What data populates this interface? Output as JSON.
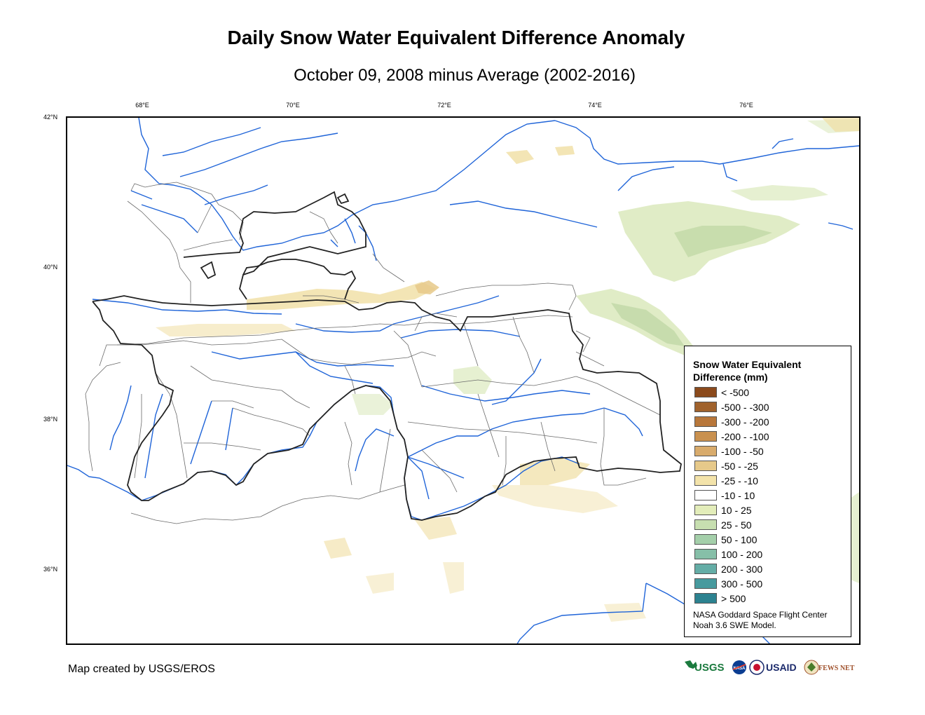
{
  "title": "Daily Snow Water Equivalent Difference Anomaly",
  "subtitle": "October 09, 2008 minus Average (2002-2016)",
  "longitude_labels": [
    "68°E",
    "70°E",
    "72°E",
    "74°E",
    "76°E"
  ],
  "latitude_labels": [
    "42°N",
    "40°N",
    "38°N",
    "36°N"
  ],
  "legend": {
    "title_line1": "Snow Water Equivalent",
    "title_line2": "Difference (mm)",
    "items": [
      {
        "label": "< -500",
        "color": "#8b4a1c"
      },
      {
        "label": "-500 - -300",
        "color": "#a0622c"
      },
      {
        "label": "-300 - -200",
        "color": "#b8773a"
      },
      {
        "label": "-200 - -100",
        "color": "#c9914f"
      },
      {
        "label": "-100 - -50",
        "color": "#d8ab6c"
      },
      {
        "label": "-50 - -25",
        "color": "#e6c98a"
      },
      {
        "label": "-25 - -10",
        "color": "#f3e3aa"
      },
      {
        "label": "-10 - 10",
        "color": "#ffffff"
      },
      {
        "label": "10 - 25",
        "color": "#e3edba"
      },
      {
        "label": "25 - 50",
        "color": "#c7dfb0"
      },
      {
        "label": "50 - 100",
        "color": "#a4cfaa"
      },
      {
        "label": "100 - 200",
        "color": "#86bfa8"
      },
      {
        "label": "200 - 300",
        "color": "#64ada6"
      },
      {
        "label": "300 - 500",
        "color": "#479a9e"
      },
      {
        "label": "> 500",
        "color": "#2c8290"
      }
    ],
    "credit_line1": "NASA Goddard Space Flight Center",
    "credit_line2": "Noah 3.6 SWE Model."
  },
  "map_credit": "Map created by USGS/EROS",
  "logos": {
    "usgs": "USGS",
    "nasa": "NASA",
    "usaid": "USAID",
    "fewsnet": "FEWS NET"
  },
  "colors": {
    "river": "#1f64d8",
    "country_border": "#222222",
    "province_border": "#666666",
    "snow_positive": "#c7dfb0",
    "snow_negative": "#f3e3aa"
  }
}
